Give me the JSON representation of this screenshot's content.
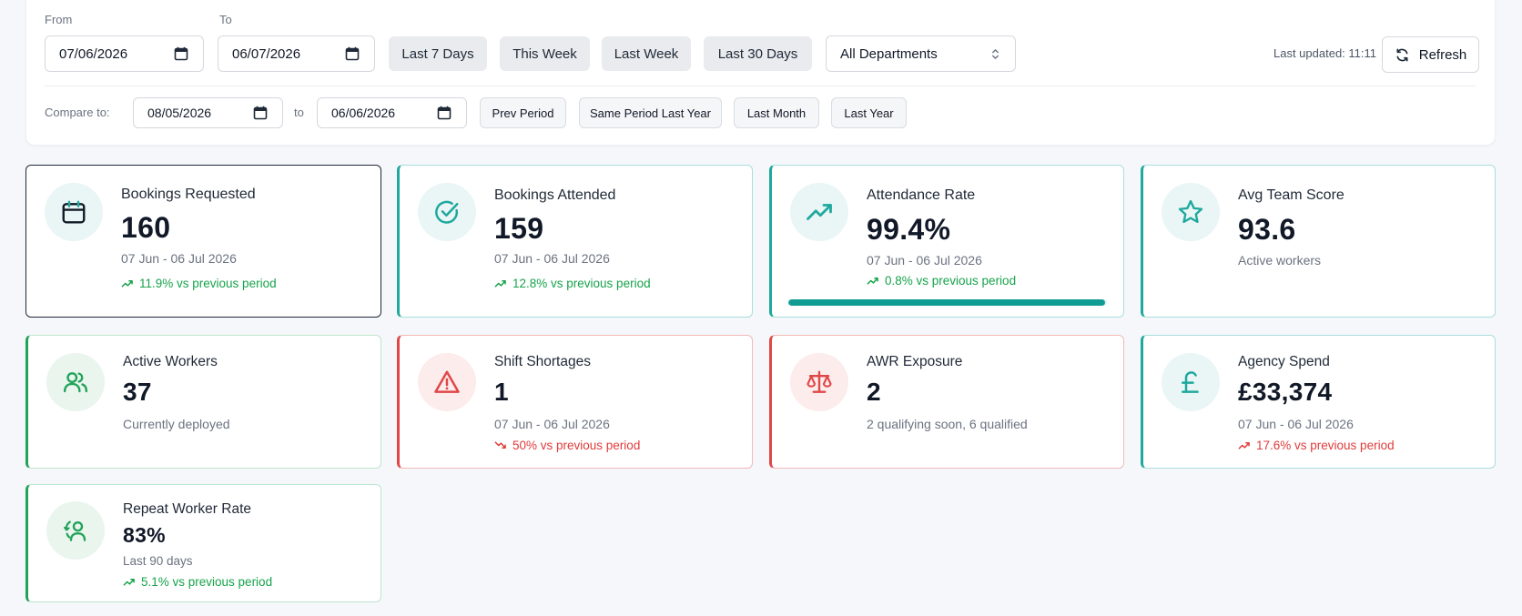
{
  "filters": {
    "from_label": "From",
    "to_label": "To",
    "from_date": "07/06/2026",
    "to_date": "06/07/2026",
    "quick_ranges": [
      "Last 7 Days",
      "This Week",
      "Last Week",
      "Last 30 Days"
    ],
    "department": "All Departments",
    "last_updated": "Last updated: 11:11",
    "refresh_label": "Refresh",
    "compare_label": "Compare to:",
    "compare_from": "08/05/2026",
    "compare_to_word": "to",
    "compare_to": "06/06/2026",
    "compare_ranges": [
      "Prev Period",
      "Same Period Last Year",
      "Last Month",
      "Last Year"
    ]
  },
  "cards": [
    {
      "title": "Bookings Requested",
      "value": "160",
      "sub": "07 Jun - 06 Jul 2026",
      "trend": "11.9% vs previous period",
      "icon": "calendar-icon"
    },
    {
      "title": "Bookings Attended",
      "value": "159",
      "sub": "07 Jun - 06 Jul 2026",
      "trend": "12.8% vs previous period",
      "icon": "check-circle-icon"
    },
    {
      "title": "Attendance Rate",
      "value": "99.4%",
      "sub": "07 Jun - 06 Jul 2026",
      "trend": "0.8% vs previous period",
      "icon": "trending-up-icon",
      "progress": 99.4
    },
    {
      "title": "Avg Team Score",
      "value": "93.6",
      "sub": "Active workers",
      "icon": "star-icon"
    },
    {
      "title": "Active Workers",
      "value": "37",
      "sub": "Currently deployed",
      "icon": "users-icon"
    },
    {
      "title": "Shift Shortages",
      "value": "1",
      "sub": "07 Jun - 06 Jul 2026",
      "trend": "50% vs previous period",
      "icon": "warning-icon"
    },
    {
      "title": "AWR Exposure",
      "value": "2",
      "sub": "2 qualifying soon, 6 qualified",
      "icon": "scale-icon"
    },
    {
      "title": "Agency Spend",
      "value": "£33,374",
      "sub": "07 Jun - 06 Jul 2026",
      "trend": "17.6% vs previous period",
      "icon": "pound-icon"
    },
    {
      "title": "Repeat Worker Rate",
      "value": "83%",
      "sub": "Last 90 days",
      "trend": "5.1% vs previous period",
      "icon": "repeat-user-icon"
    }
  ],
  "colors": {
    "teal": "#1fa89e",
    "green": "#22a35a",
    "red": "#e04848",
    "positive_trend": "#16a34a",
    "negative_trend": "#e03b3b"
  }
}
